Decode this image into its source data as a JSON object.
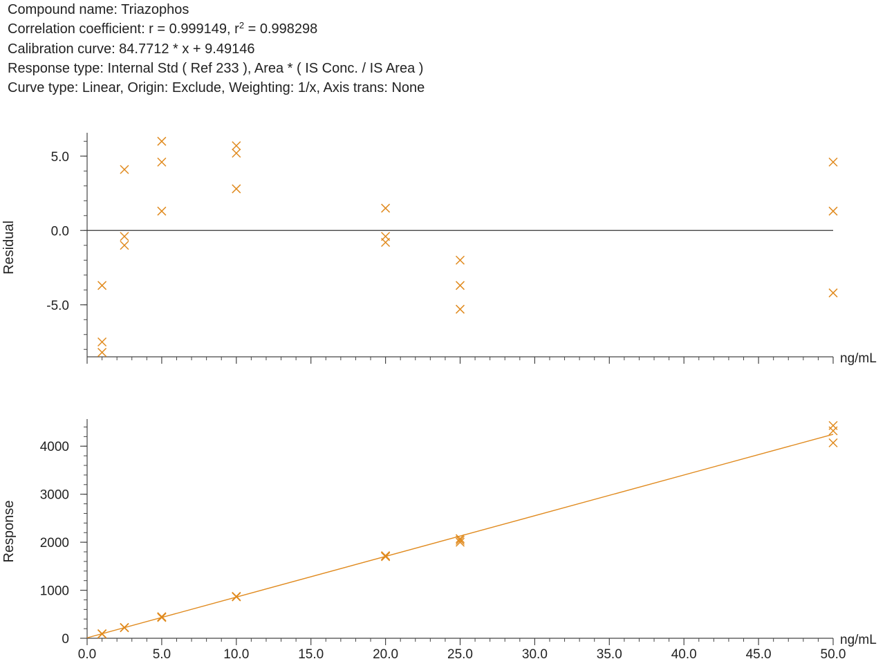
{
  "header": {
    "compound": "Compound name: Triazophos",
    "corr_prefix": "Correlation coefficient: r = 0.999149, r",
    "corr_sup": "2",
    "corr_suffix": " = 0.998298",
    "calibration": "Calibration curve: 84.7712 * x + 9.49146",
    "response_type": "Response type: Internal Std ( Ref 233 ), Area * ( IS Conc. / IS Area )",
    "curve_type": "Curve type: Linear, Origin: Exclude, Weighting: 1/x, Axis trans: None"
  },
  "colors": {
    "marker": "#e08a1e",
    "fit_line": "#e08a1e",
    "axis": "#444444",
    "zero_line": "#333333"
  },
  "chart_data": [
    {
      "type": "scatter",
      "name": "residual-plot",
      "ylabel": "Residual",
      "xlabel": "ng/mL",
      "xlim": [
        0,
        50
      ],
      "ylim": [
        -8.5,
        6.2
      ],
      "yticks": [
        {
          "v": 5.0,
          "label": "5.0"
        },
        {
          "v": 0.0,
          "label": "0.0"
        },
        {
          "v": -5.0,
          "label": "-5.0"
        }
      ],
      "zero_line": true,
      "points": [
        {
          "x": 1,
          "y": -3.7
        },
        {
          "x": 1,
          "y": -7.5
        },
        {
          "x": 1,
          "y": -8.2
        },
        {
          "x": 2.5,
          "y": 4.1
        },
        {
          "x": 2.5,
          "y": -0.4
        },
        {
          "x": 2.5,
          "y": -1.0
        },
        {
          "x": 5,
          "y": 6.0
        },
        {
          "x": 5,
          "y": 4.6
        },
        {
          "x": 5,
          "y": 1.3
        },
        {
          "x": 10,
          "y": 5.7
        },
        {
          "x": 10,
          "y": 5.2
        },
        {
          "x": 10,
          "y": 2.8
        },
        {
          "x": 20,
          "y": 1.5
        },
        {
          "x": 20,
          "y": -0.4
        },
        {
          "x": 20,
          "y": -0.8
        },
        {
          "x": 25,
          "y": -2.0
        },
        {
          "x": 25,
          "y": -3.7
        },
        {
          "x": 25,
          "y": -5.3
        },
        {
          "x": 50,
          "y": 4.6
        },
        {
          "x": 50,
          "y": 1.3
        },
        {
          "x": 50,
          "y": -4.2
        }
      ]
    },
    {
      "type": "scatter",
      "name": "response-plot",
      "ylabel": "Response",
      "xlabel": "ng/mL",
      "xlim": [
        0,
        50
      ],
      "ylim": [
        0,
        4450
      ],
      "yticks": [
        {
          "v": 0,
          "label": "0"
        },
        {
          "v": 1000,
          "label": "1000"
        },
        {
          "v": 2000,
          "label": "2000"
        },
        {
          "v": 3000,
          "label": "3000"
        },
        {
          "v": 4000,
          "label": "4000"
        }
      ],
      "xticks": [
        {
          "v": 0,
          "label": "0.0"
        },
        {
          "v": 5,
          "label": "5.0"
        },
        {
          "v": 10,
          "label": "10.0"
        },
        {
          "v": 15,
          "label": "15.0"
        },
        {
          "v": 20,
          "label": "20.0"
        },
        {
          "v": 25,
          "label": "25.0"
        },
        {
          "v": 30,
          "label": "30.0"
        },
        {
          "v": 35,
          "label": "35.0"
        },
        {
          "v": 40,
          "label": "40.0"
        },
        {
          "v": 45,
          "label": "45.0"
        },
        {
          "v": 50,
          "label": "50.0"
        }
      ],
      "fit": {
        "slope": 84.7712,
        "intercept": 9.49146
      },
      "points": [
        {
          "x": 1,
          "y": 95
        },
        {
          "x": 1,
          "y": 90
        },
        {
          "x": 1,
          "y": 88
        },
        {
          "x": 2.5,
          "y": 225
        },
        {
          "x": 2.5,
          "y": 222
        },
        {
          "x": 2.5,
          "y": 220
        },
        {
          "x": 5,
          "y": 450
        },
        {
          "x": 5,
          "y": 440
        },
        {
          "x": 5,
          "y": 432
        },
        {
          "x": 10,
          "y": 872
        },
        {
          "x": 10,
          "y": 866
        },
        {
          "x": 10,
          "y": 862
        },
        {
          "x": 20,
          "y": 1720
        },
        {
          "x": 20,
          "y": 1705
        },
        {
          "x": 20,
          "y": 1700
        },
        {
          "x": 25,
          "y": 2075
        },
        {
          "x": 25,
          "y": 2040
        },
        {
          "x": 25,
          "y": 2000
        },
        {
          "x": 50,
          "y": 4430
        },
        {
          "x": 50,
          "y": 4320
        },
        {
          "x": 50,
          "y": 4070
        }
      ]
    }
  ]
}
